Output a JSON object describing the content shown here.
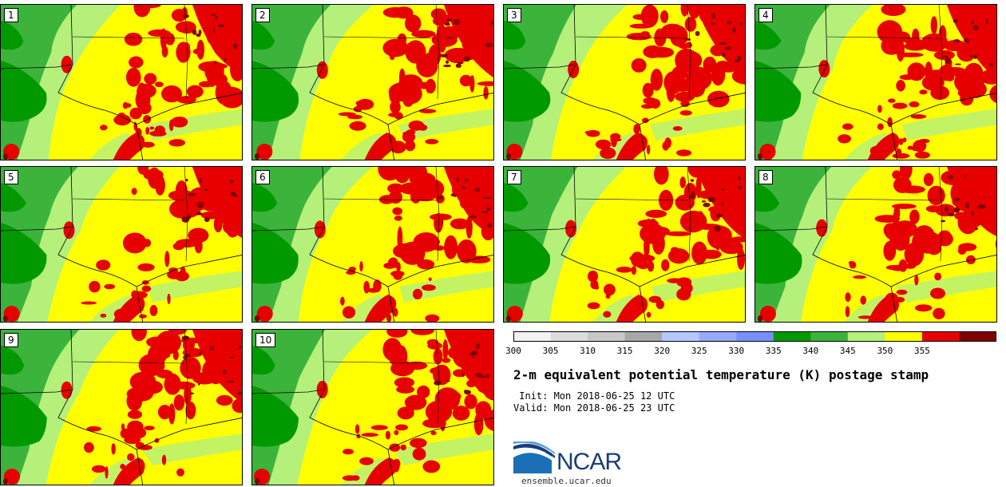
{
  "panels": [
    {
      "label": "1"
    },
    {
      "label": "2"
    },
    {
      "label": "3"
    },
    {
      "label": "4"
    },
    {
      "label": "5"
    },
    {
      "label": "6"
    },
    {
      "label": "7"
    },
    {
      "label": "8"
    },
    {
      "label": "9"
    },
    {
      "label": "10"
    }
  ],
  "colorbar": {
    "ticks": [
      "300",
      "305",
      "310",
      "315",
      "320",
      "325",
      "330",
      "335",
      "340",
      "345",
      "350",
      "355"
    ],
    "colors": [
      "#f2f2f2",
      "#dcdcdc",
      "#c8c8c8",
      "#a8a8a8",
      "#b4c8ff",
      "#96aaff",
      "#7890ff",
      "#009a00",
      "#3cb43c",
      "#b4f07a",
      "#ffff00",
      "#e60000",
      "#800000"
    ]
  },
  "title": "2-m equivalent potential temperature (K) postage stamp",
  "init_line": " Init: Mon 2018-06-25 12 UTC",
  "valid_line": "Valid: Mon 2018-06-25 23 UTC",
  "logo": {
    "name": "NCAR",
    "url": "ensemble.ucar.edu"
  }
}
